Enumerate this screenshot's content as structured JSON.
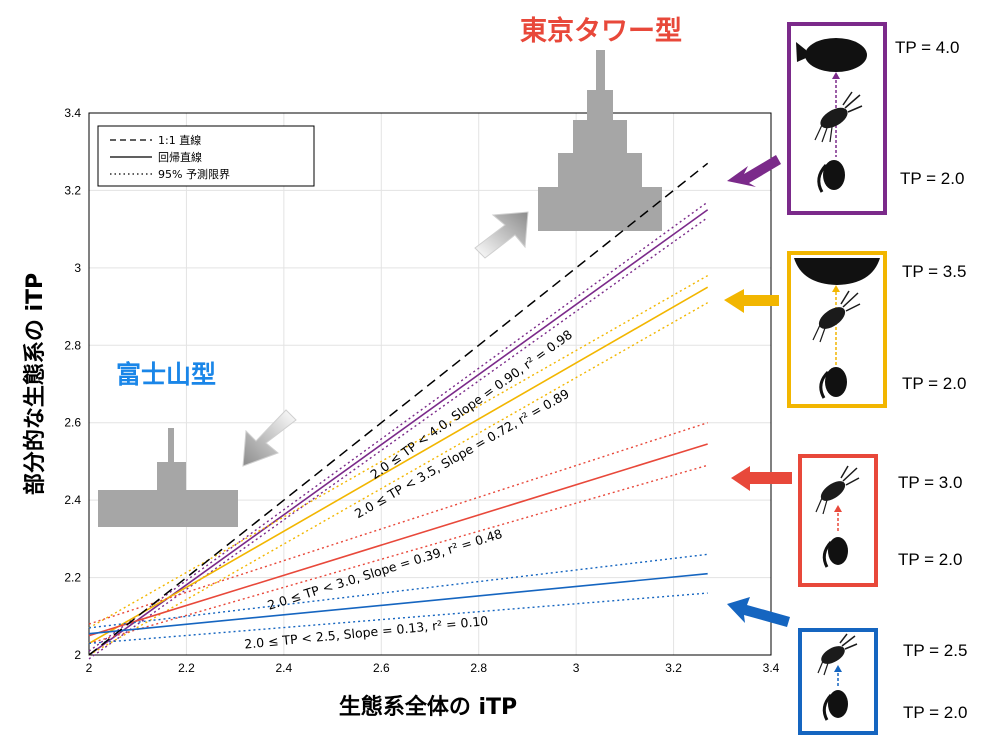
{
  "labels": {
    "tokyo_tower": "東京タワー型",
    "fuji": "富士山型"
  },
  "colors": {
    "purple": "#7b2a8a",
    "yellow": "#f2b600",
    "red": "#e8483a",
    "blue": "#1565c0",
    "tokyo_label": "#e8483a",
    "fuji_label": "#1a86e8",
    "pyramid": "#a6a6a6"
  },
  "panels": [
    {
      "color": "purple",
      "tp_top": "TP = 4.0",
      "tp_bottom": "TP = 2.0",
      "organisms": [
        "fish-silhouette",
        "shrimp-silhouette",
        "copepod-silhouette"
      ]
    },
    {
      "color": "yellow",
      "tp_top": "TP = 3.5",
      "tp_bottom": "TP = 2.0",
      "organisms": [
        "fish-silhouette",
        "shrimp-silhouette",
        "copepod-silhouette"
      ]
    },
    {
      "color": "red",
      "tp_top": "TP = 3.0",
      "tp_bottom": "TP = 2.0",
      "organisms": [
        "shrimp-silhouette",
        "copepod-silhouette"
      ]
    },
    {
      "color": "blue",
      "tp_top": "TP = 2.5",
      "tp_bottom": "TP = 2.0",
      "organisms": [
        "shrimp-silhouette",
        "copepod-silhouette"
      ]
    }
  ],
  "chart_data": {
    "type": "line",
    "xlabel": "生態系全体の iTP",
    "ylabel": "部分的な生態系の iTP",
    "xlim": [
      2,
      3.4
    ],
    "ylim": [
      2,
      3.4
    ],
    "xticks": [
      "2",
      "2.2",
      "2.4",
      "2.6",
      "2.8",
      "3",
      "3.2",
      "3.4"
    ],
    "yticks": [
      "2",
      "2.2",
      "2.4",
      "2.6",
      "2.8",
      "3",
      "3.2",
      "3.4"
    ],
    "grid": true,
    "legend_position": "top-left",
    "legend": [
      {
        "label": "1:1 直線",
        "style": "dashed"
      },
      {
        "label": "回帰直線",
        "style": "solid"
      },
      {
        "label": "95% 予測限界",
        "style": "dotted"
      }
    ],
    "reference_line": {
      "name": "1:1 直線",
      "x": [
        2.0,
        3.27
      ],
      "y": [
        2.0,
        3.27
      ]
    },
    "series": [
      {
        "color": "purple",
        "annotation": "2.0 ≤ TP < 4.0, Slope = 0.90, r² = 0.98",
        "fit": {
          "x": [
            2.0,
            3.27
          ],
          "y": [
            2.0,
            3.15
          ]
        },
        "upper": {
          "x": [
            2.0,
            3.27
          ],
          "y": [
            2.01,
            3.17
          ]
        },
        "lower": {
          "x": [
            2.0,
            3.27
          ],
          "y": [
            1.99,
            3.13
          ]
        }
      },
      {
        "color": "yellow",
        "annotation": "2.0 ≤ TP < 3.5, Slope = 0.72, r² = 0.89",
        "fit": {
          "x": [
            2.0,
            3.27
          ],
          "y": [
            2.03,
            2.95
          ]
        },
        "upper": {
          "x": [
            2.0,
            3.27
          ],
          "y": [
            2.07,
            2.98
          ]
        },
        "lower": {
          "x": [
            2.0,
            3.27
          ],
          "y": [
            2.0,
            2.91
          ]
        }
      },
      {
        "color": "red",
        "annotation": "2.0 ≤ TP < 3.0, Slope = 0.39, r² = 0.48",
        "fit": {
          "x": [
            2.0,
            3.27
          ],
          "y": [
            2.05,
            2.545
          ]
        },
        "upper": {
          "x": [
            2.0,
            3.27
          ],
          "y": [
            2.08,
            2.6
          ]
        },
        "lower": {
          "x": [
            2.0,
            3.27
          ],
          "y": [
            2.03,
            2.49
          ]
        }
      },
      {
        "color": "blue",
        "annotation": "2.0 ≤ TP < 2.5, Slope = 0.13, r² = 0.10",
        "fit": {
          "x": [
            2.0,
            3.27
          ],
          "y": [
            2.055,
            2.21
          ]
        },
        "upper": {
          "x": [
            2.0,
            3.27
          ],
          "y": [
            2.07,
            2.26
          ]
        },
        "lower": {
          "x": [
            2.0,
            3.27
          ],
          "y": [
            2.03,
            2.16
          ]
        }
      }
    ]
  }
}
